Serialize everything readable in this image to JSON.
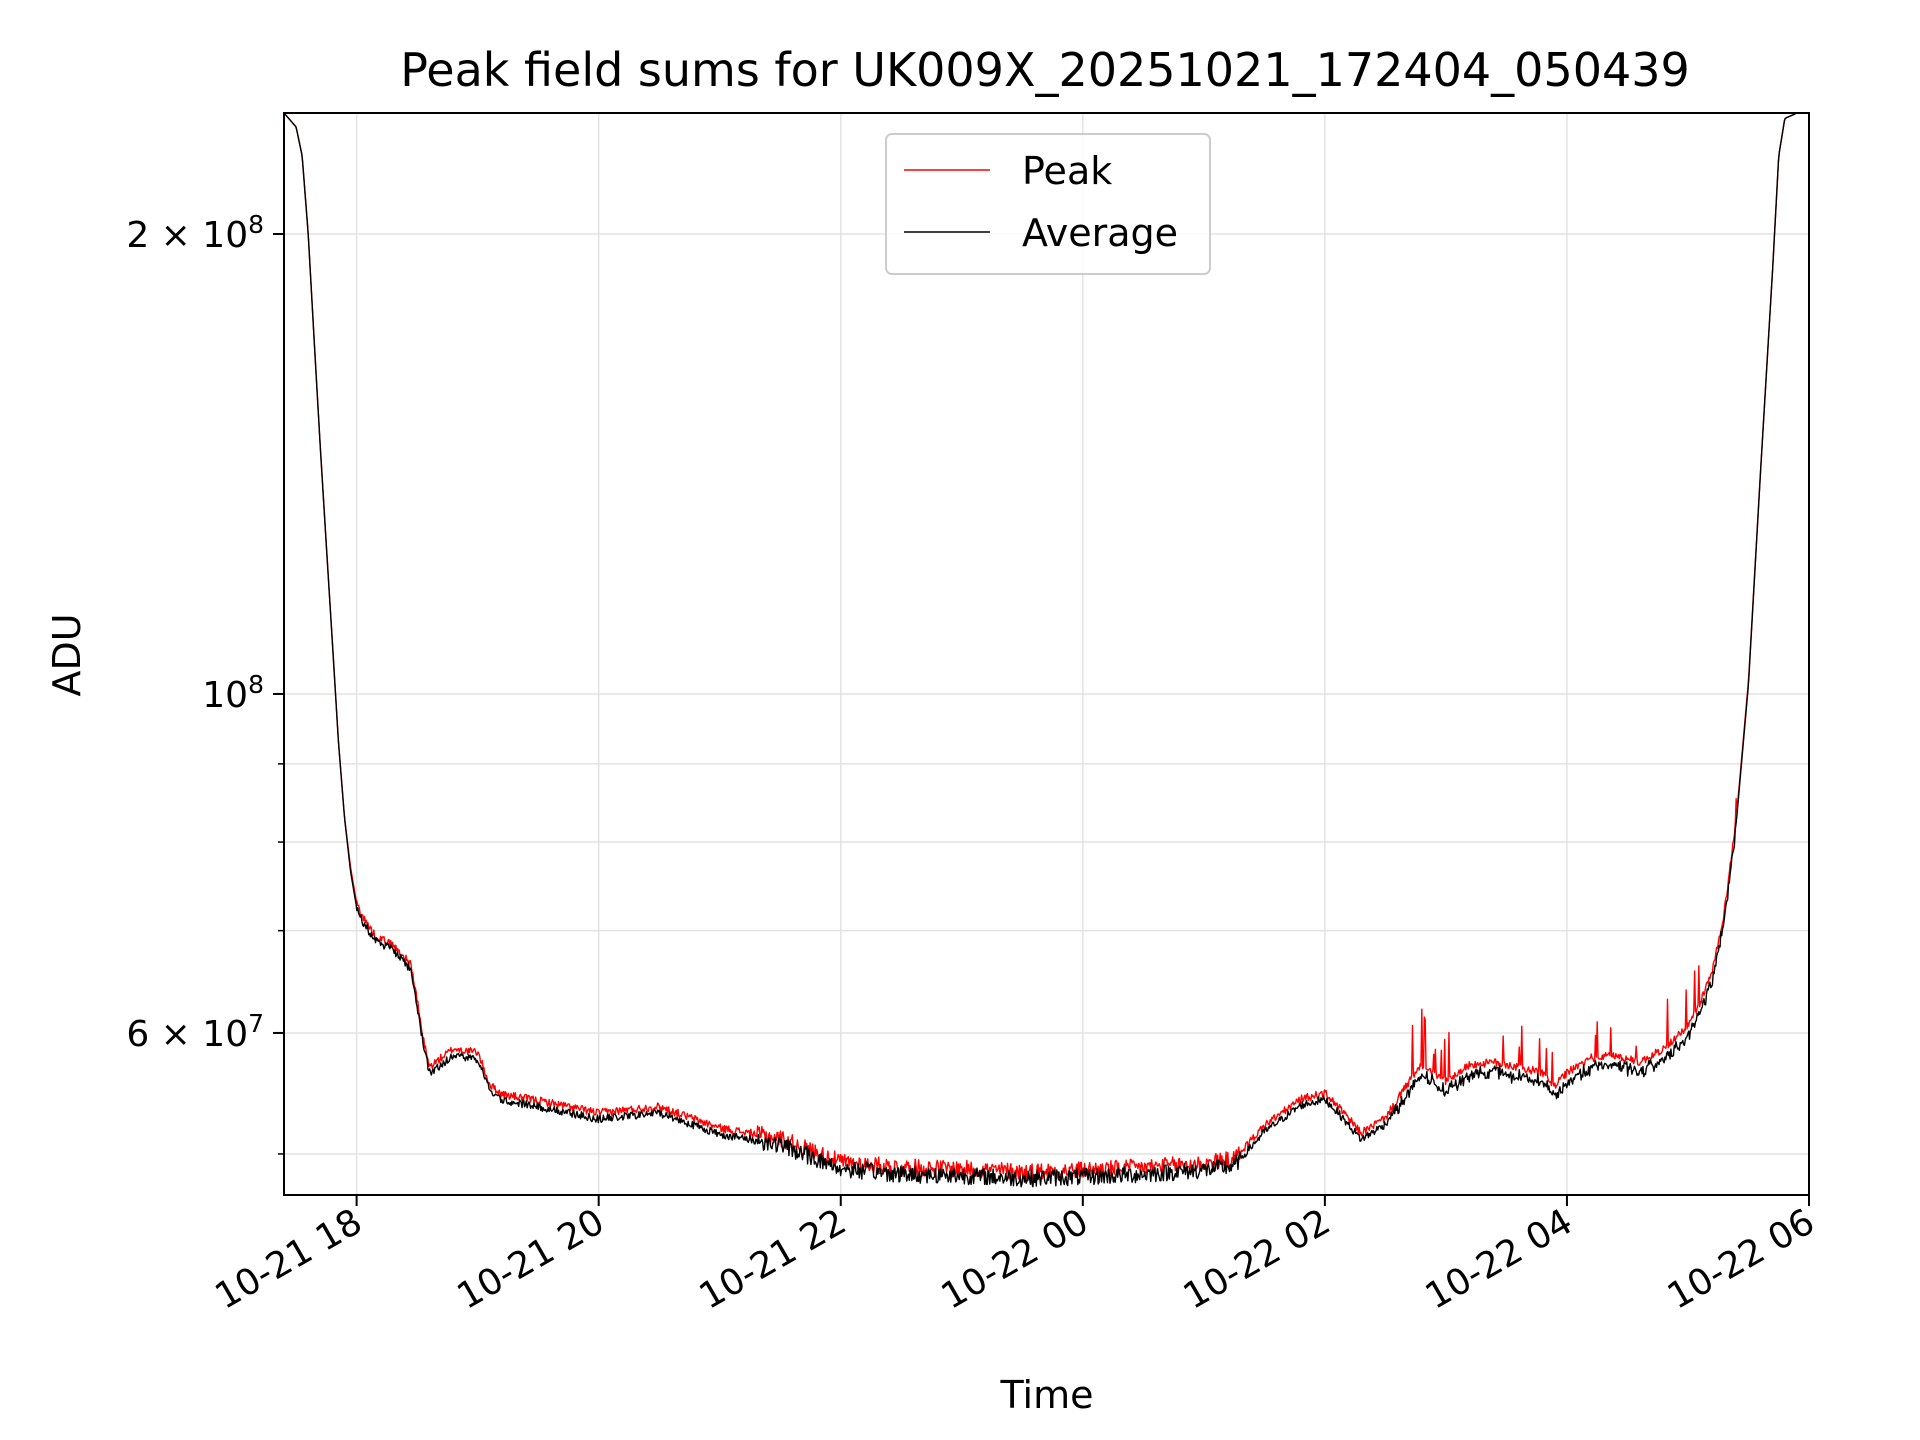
{
  "chart_data": {
    "type": "line",
    "title": "Peak field sums for UK009X_20251021_172404_050439",
    "xlabel": "Time",
    "ylabel": "ADU",
    "yscale": "log",
    "ylim": [
      47000000,
      240000000
    ],
    "xlim_hours": [
      17.4,
      30.0
    ],
    "grid": true,
    "legend_position": "upper center",
    "x_ticks": [
      {
        "hour": 18,
        "label": "10-21 18"
      },
      {
        "hour": 20,
        "label": "10-21 20"
      },
      {
        "hour": 22,
        "label": "10-21 22"
      },
      {
        "hour": 24,
        "label": "10-22 00"
      },
      {
        "hour": 26,
        "label": "10-22 02"
      },
      {
        "hour": 28,
        "label": "10-22 04"
      },
      {
        "hour": 30,
        "label": "10-22 06"
      }
    ],
    "y_major_ticks": [
      {
        "value": 200000000,
        "label_base": "2 × 10",
        "label_exp": "8"
      },
      {
        "value": 100000000,
        "label_base": "10",
        "label_exp": "8"
      },
      {
        "value": 60000000,
        "label_base": "6 × 10",
        "label_exp": "7"
      }
    ],
    "y_minor_ticks": [
      50000000,
      70000000,
      80000000,
      90000000
    ],
    "series": [
      {
        "name": "Peak",
        "color": "#ff0000",
        "x_hours": [
          17.4,
          17.5,
          17.55,
          17.6,
          17.65,
          17.7,
          17.75,
          17.8,
          17.85,
          17.9,
          17.95,
          18.0,
          18.05,
          18.15,
          18.3,
          18.45,
          18.5,
          18.55,
          18.6,
          18.7,
          18.8,
          18.9,
          19.0,
          19.1,
          19.2,
          19.5,
          20.0,
          20.5,
          21.0,
          21.5,
          22.0,
          22.5,
          23.0,
          23.5,
          24.0,
          24.5,
          25.0,
          25.25,
          25.5,
          25.8,
          26.0,
          26.1,
          26.3,
          26.5,
          26.7,
          26.8,
          26.9,
          27.0,
          27.2,
          27.4,
          27.6,
          27.8,
          27.9,
          28.0,
          28.2,
          28.4,
          28.6,
          28.8,
          29.0,
          29.1,
          29.2,
          29.3,
          29.4,
          29.5,
          29.6,
          29.7,
          29.75,
          29.8,
          29.9,
          30.0
        ],
        "values": [
          240000000,
          235000000,
          225000000,
          200000000,
          170000000,
          145000000,
          125000000,
          108000000,
          93000000,
          83000000,
          77000000,
          73000000,
          71500000,
          69500000,
          68500000,
          66500000,
          63000000,
          59500000,
          57000000,
          57800000,
          58600000,
          58400000,
          58300000,
          55500000,
          54700000,
          54200000,
          53200000,
          53700000,
          52000000,
          51200000,
          49400000,
          49000000,
          48900000,
          48700000,
          48800000,
          49000000,
          49300000,
          49600000,
          52200000,
          54300000,
          54800000,
          53800000,
          51600000,
          52800000,
          55800000,
          57200000,
          56500000,
          55800000,
          57200000,
          57400000,
          57000000,
          56500000,
          55400000,
          56500000,
          57800000,
          58000000,
          57400000,
          58600000,
          60600000,
          62800000,
          65800000,
          72000000,
          83000000,
          102000000,
          140000000,
          190000000,
          225000000,
          238000000,
          240000000,
          240000000
        ]
      },
      {
        "name": "Average",
        "color": "#000000",
        "x_hours": [
          17.4,
          17.5,
          17.55,
          17.6,
          17.65,
          17.7,
          17.75,
          17.8,
          17.85,
          17.9,
          17.95,
          18.0,
          18.05,
          18.15,
          18.3,
          18.45,
          18.5,
          18.55,
          18.6,
          18.7,
          18.8,
          18.9,
          19.0,
          19.1,
          19.2,
          19.5,
          20.0,
          20.5,
          21.0,
          21.5,
          22.0,
          22.5,
          23.0,
          23.5,
          24.0,
          24.5,
          25.0,
          25.25,
          25.5,
          25.8,
          26.0,
          26.1,
          26.3,
          26.5,
          26.7,
          26.8,
          26.9,
          27.0,
          27.2,
          27.4,
          27.6,
          27.8,
          27.9,
          28.0,
          28.2,
          28.4,
          28.6,
          28.8,
          29.0,
          29.1,
          29.2,
          29.3,
          29.4,
          29.5,
          29.6,
          29.7,
          29.75,
          29.8,
          29.9,
          30.0
        ],
        "values": [
          240000000,
          235000000,
          225000000,
          200000000,
          170000000,
          145000000,
          125000000,
          108000000,
          93000000,
          83000000,
          76500000,
          72500000,
          71000000,
          69000000,
          68000000,
          66000000,
          62500000,
          59000000,
          56500000,
          57200000,
          58000000,
          57800000,
          57700000,
          55000000,
          54200000,
          53700000,
          52700000,
          53200000,
          51500000,
          50700000,
          48900000,
          48500000,
          48400000,
          48200000,
          48300000,
          48500000,
          48800000,
          49100000,
          51700000,
          53800000,
          54300000,
          53300000,
          51100000,
          52300000,
          55300000,
          56700000,
          56000000,
          55300000,
          56700000,
          56900000,
          56500000,
          56000000,
          54900000,
          56000000,
          57300000,
          57500000,
          56900000,
          58100000,
          60100000,
          62300000,
          65300000,
          71500000,
          82500000,
          101500000,
          140000000,
          190000000,
          225000000,
          238000000,
          240000000,
          240000000
        ]
      }
    ]
  }
}
